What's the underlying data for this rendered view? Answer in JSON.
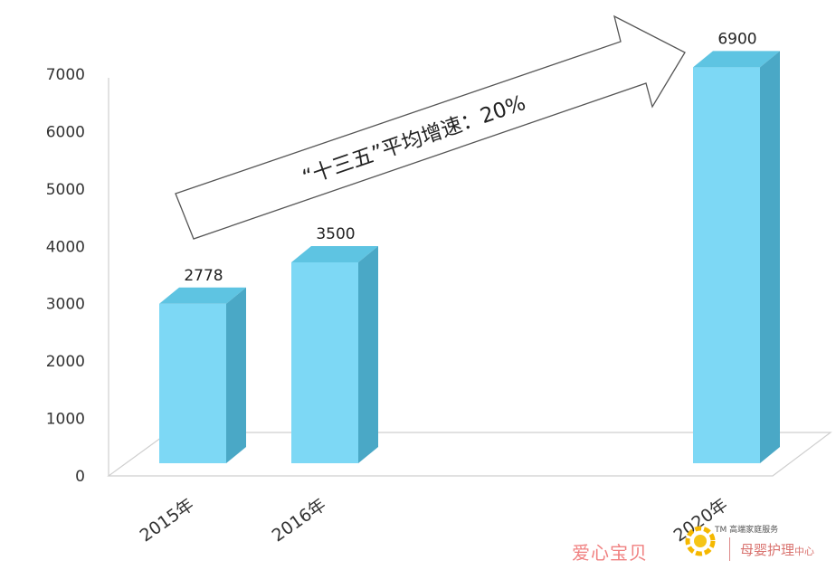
{
  "chart_data": {
    "type": "bar",
    "categories": [
      "2015年",
      "2016年",
      "2020年"
    ],
    "values": [
      2778,
      3500,
      6900
    ],
    "ylim": [
      0,
      7000
    ],
    "yticks": [
      0,
      1000,
      2000,
      3000,
      4000,
      5000,
      6000,
      7000
    ],
    "annotation": "“十三五”平均增速：20%",
    "colors": {
      "bar_front": "#7dd8f5",
      "bar_top": "#5ec4e2",
      "bar_side": "#4aa8c6"
    },
    "legend": "none",
    "grid": false
  },
  "watermark": {
    "brand": "爱心宝贝",
    "tm": "TM 高端家庭服务",
    "sub": "母婴护理",
    "sub_small": "中心"
  }
}
